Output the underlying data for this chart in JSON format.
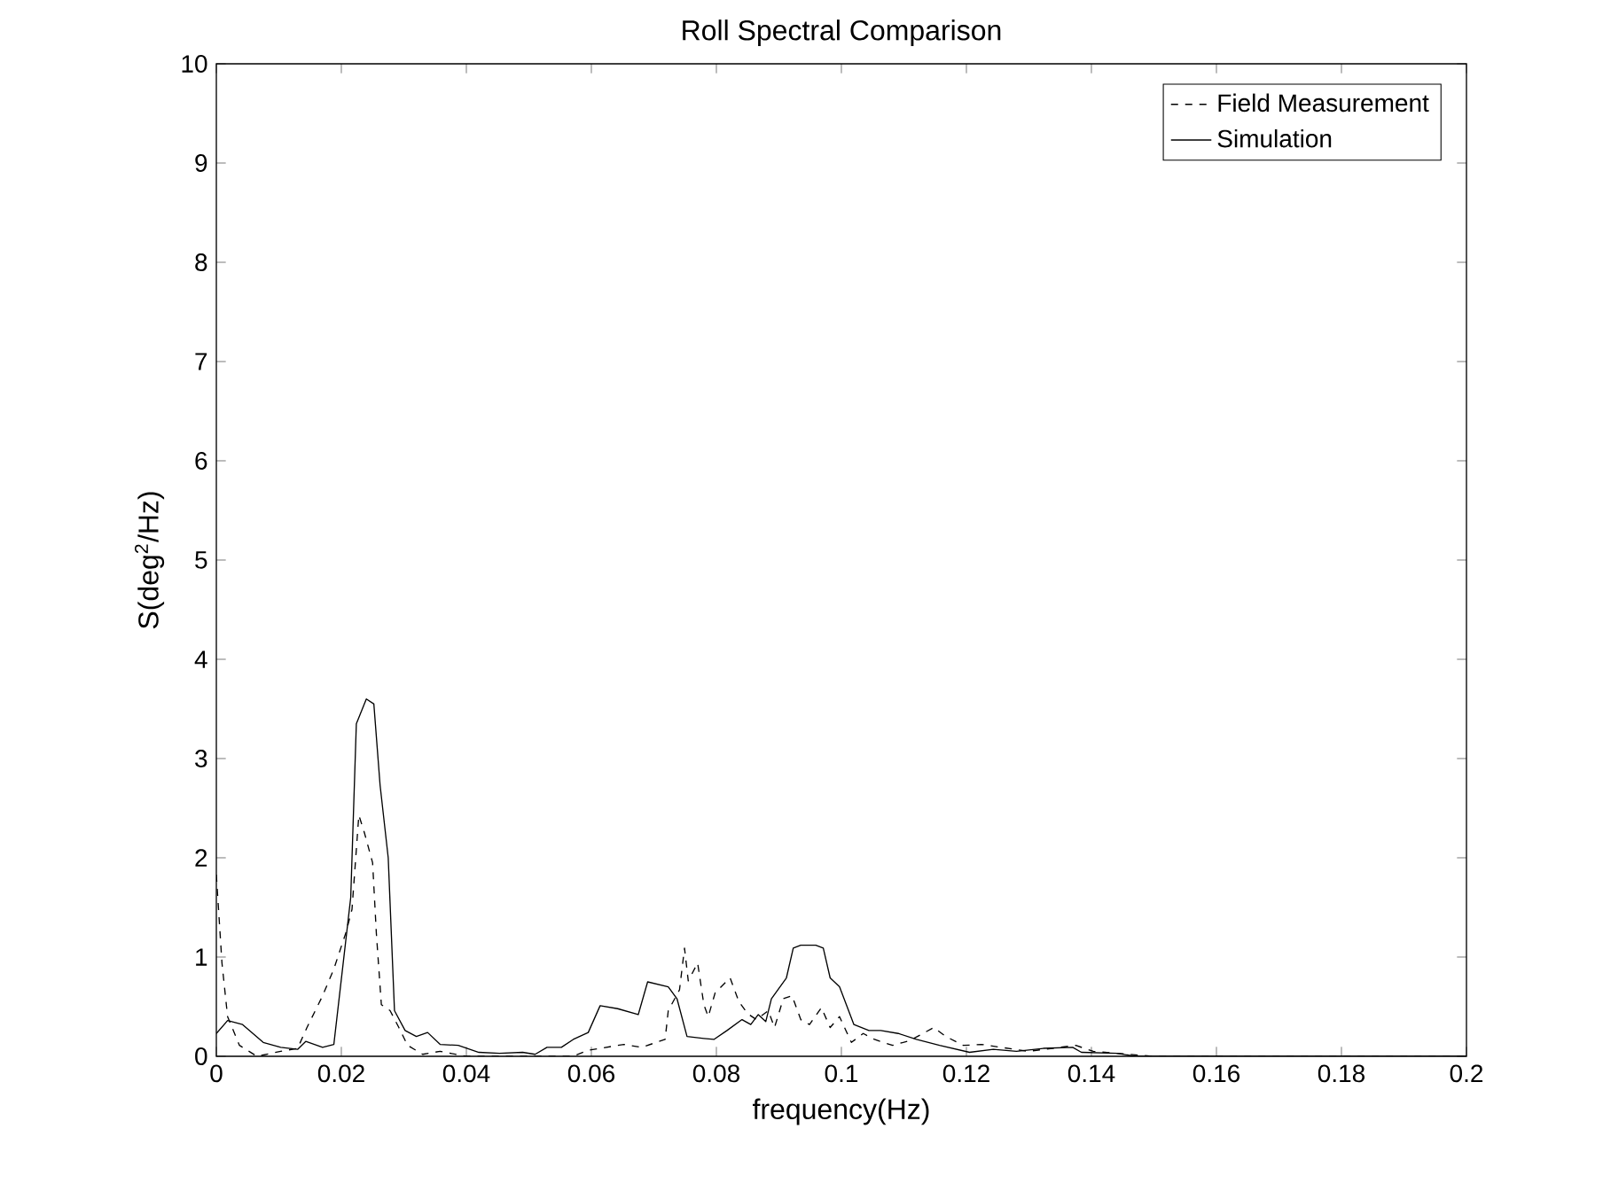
{
  "chart_data": {
    "type": "line",
    "title": "Roll Spectral Comparison",
    "xlabel": "frequency(Hz)",
    "ylabel": "S(deg$^{2}$/Hz)",
    "xlim": [
      0,
      0.2
    ],
    "ylim": [
      0,
      10
    ],
    "xticks": [
      0,
      0.02,
      0.04,
      0.06,
      0.08,
      0.1,
      0.12,
      0.14,
      0.16,
      0.18,
      0.2
    ],
    "yticks": [
      0,
      1,
      2,
      3,
      4,
      5,
      6,
      7,
      8,
      9,
      10
    ],
    "legend": "top right",
    "marker": "none",
    "series": [
      {
        "name": "Field Measurement",
        "color": "#000000",
        "line_style": "dashed",
        "x": [
          0,
          0.0009,
          0.0018,
          0.0037,
          0.0065,
          0.0103,
          0.013,
          0.0145,
          0.017,
          0.0188,
          0.0207,
          0.0217,
          0.0228,
          0.0237,
          0.025,
          0.0256,
          0.0264,
          0.0278,
          0.0292,
          0.0306,
          0.033,
          0.0358,
          0.04,
          0.05,
          0.057,
          0.0595,
          0.0652,
          0.068,
          0.0718,
          0.0723,
          0.0741,
          0.0749,
          0.0755,
          0.077,
          0.078,
          0.0787,
          0.0798,
          0.0822,
          0.0836,
          0.085,
          0.0864,
          0.0883,
          0.0893,
          0.0907,
          0.0921,
          0.0935,
          0.0949,
          0.0968,
          0.0982,
          0.0997,
          0.1016,
          0.1035,
          0.1053,
          0.1082,
          0.111,
          0.1148,
          0.1167,
          0.1195,
          0.1224,
          0.1299,
          0.1375,
          0.1403,
          0.146,
          0.15,
          0.2
        ],
        "values": [
          1.83,
          0.94,
          0.4,
          0.11,
          0,
          0.05,
          0.08,
          0.29,
          0.61,
          0.88,
          1.24,
          1.48,
          2.43,
          2.25,
          1.95,
          1.24,
          0.52,
          0.46,
          0.29,
          0.11,
          0.02,
          0.05,
          0,
          0,
          0,
          0.06,
          0.12,
          0.09,
          0.17,
          0.46,
          0.67,
          1.09,
          0.76,
          0.94,
          0.52,
          0.4,
          0.64,
          0.79,
          0.55,
          0.43,
          0.37,
          0.46,
          0.29,
          0.58,
          0.61,
          0.37,
          0.32,
          0.49,
          0.29,
          0.4,
          0.14,
          0.23,
          0.17,
          0.11,
          0.16,
          0.29,
          0.2,
          0.11,
          0.12,
          0.05,
          0.11,
          0.05,
          0.02,
          0,
          0
        ]
      },
      {
        "name": "Simulation",
        "color": "#000000",
        "line_style": "solid",
        "x": [
          0,
          0.0018,
          0.0042,
          0.0075,
          0.0103,
          0.013,
          0.0143,
          0.017,
          0.0188,
          0.0215,
          0.0224,
          0.024,
          0.0252,
          0.0262,
          0.0275,
          0.0285,
          0.0302,
          0.032,
          0.0338,
          0.0358,
          0.0387,
          0.042,
          0.0453,
          0.049,
          0.051,
          0.0529,
          0.0552,
          0.0571,
          0.0595,
          0.0614,
          0.0642,
          0.0675,
          0.069,
          0.0723,
          0.0737,
          0.0753,
          0.078,
          0.0796,
          0.0817,
          0.0841,
          0.0855,
          0.0867,
          0.0879,
          0.0888,
          0.0912,
          0.0923,
          0.0935,
          0.0959,
          0.0971,
          0.0982,
          0.0997,
          0.102,
          0.1044,
          0.1063,
          0.1091,
          0.112,
          0.1157,
          0.1205,
          0.1243,
          0.128,
          0.1323,
          0.137,
          0.1384,
          0.1441,
          0.147,
          0.2
        ],
        "values": [
          0.23,
          0.36,
          0.32,
          0.14,
          0.09,
          0.07,
          0.15,
          0.09,
          0.12,
          1.6,
          3.35,
          3.6,
          3.55,
          2.73,
          2.0,
          0.46,
          0.26,
          0.2,
          0.24,
          0.12,
          0.11,
          0.04,
          0.03,
          0.04,
          0.02,
          0.09,
          0.09,
          0.17,
          0.24,
          0.51,
          0.48,
          0.42,
          0.75,
          0.7,
          0.58,
          0.2,
          0.18,
          0.17,
          0.26,
          0.37,
          0.32,
          0.42,
          0.35,
          0.58,
          0.79,
          1.09,
          1.12,
          1.12,
          1.09,
          0.79,
          0.7,
          0.32,
          0.26,
          0.26,
          0.23,
          0.17,
          0.11,
          0.04,
          0.07,
          0.05,
          0.08,
          0.09,
          0.04,
          0.03,
          0,
          0
        ]
      }
    ]
  }
}
